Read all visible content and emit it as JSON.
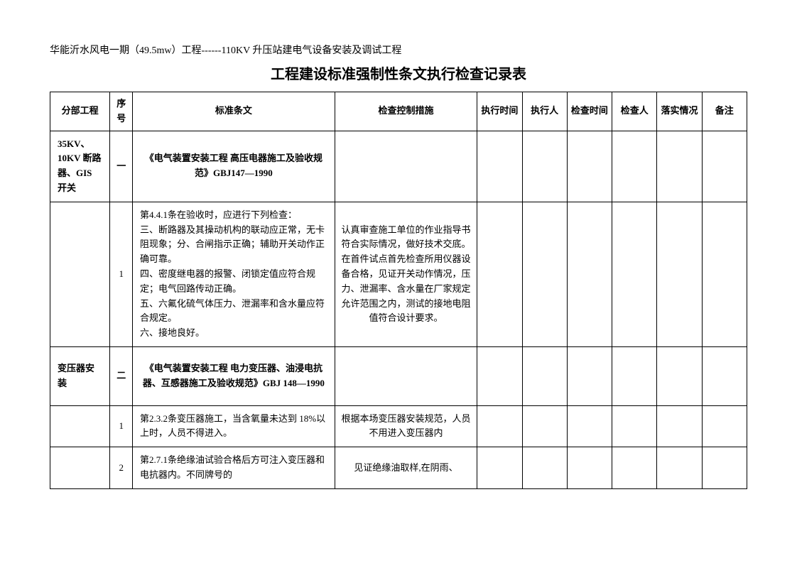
{
  "header": "华能沂水风电一期（49.5mw）工程------110KV 升压站建电气设备安装及调试工程",
  "title": "工程建设标准强制性条文执行检查记录表",
  "columns": {
    "subproject": "分部工程",
    "seq": "序号",
    "standard": "标准条文",
    "control": "检查控制措施",
    "exectime": "执行时间",
    "executor": "执行人",
    "checktime": "检查时间",
    "checker": "检查人",
    "status": "落实情况",
    "remark": "备注"
  },
  "rows": [
    {
      "subproject": "35KV、10KV 断路器、GIS 开关",
      "seq": "一",
      "standard": "《电气装置安装工程 高压电器施工及验收规范》GBJ147—1990",
      "control": "",
      "isSection": true
    },
    {
      "subproject": "",
      "seq": "1",
      "standard": "第4.4.1条在验收时，应进行下列检查：\n三、断路器及其操动机构的联动应正常，无卡阻现象；分、合闸指示正确；辅助开关动作正确可靠。\n四、密度继电器的报警、闭锁定值应符合规定；电气回路传动正确。\n五、六氟化硫气体压力、泄漏率和含水量应符合规定。\n六、接地良好。",
      "control": "认真审查施工单位的作业指导书符合实际情况，做好技术交底。在首件试点首先检查所用仪器设备合格，见证开关动作情况，压力、泄漏率、含水量在厂家规定允许范围之内，测试的接地电阻值符合设计要求。"
    },
    {
      "subproject": "变压器安装",
      "seq": "二",
      "standard": "《电气装置安装工程 电力变压器、油浸电抗器、互感器施工及验收规范》GBJ 148—1990",
      "control": "",
      "isSection": true
    },
    {
      "subproject": "",
      "seq": "1",
      "standard": "第2.3.2条变压器施工，当含氧量未达到 18%以上时，人员不得进入。",
      "control": "根据本场变压器安装规范，人员不用进入变压器内"
    },
    {
      "subproject": "",
      "seq": "2",
      "standard": "第2.7.1条绝缘油试验合格后方可注入变压器和电抗器内。不同牌号的",
      "control": "见证绝缘油取样,在阴雨、"
    }
  ]
}
